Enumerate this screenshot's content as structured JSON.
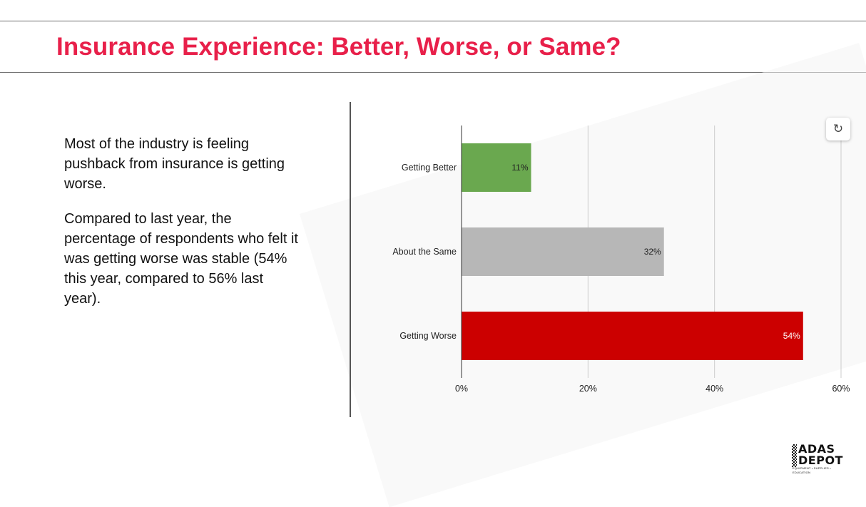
{
  "header": {
    "title": "Insurance Experience: Better, Worse, or Same?"
  },
  "body": {
    "paragraphs": [
      "Most of the industry is feeling pushback from insurance is getting worse.",
      "Compared to last year, the percentage of respondents who felt it was getting worse was stable (54% this year, compared to 56% last year)."
    ]
  },
  "controls": {
    "refresh_icon": "refresh-icon"
  },
  "logo": {
    "line1": "ADAS",
    "line2": "DEPOT",
    "tagline": "EQUIPMENT • SUPPLIES • EDUCATION"
  },
  "chart_data": {
    "type": "bar",
    "orientation": "horizontal",
    "categories": [
      "Getting Better",
      "About the Same",
      "Getting Worse"
    ],
    "values": [
      11,
      32,
      54
    ],
    "value_labels": [
      "11%",
      "32%",
      "54%"
    ],
    "colors": [
      "#6aa84f",
      "#b7b7b7",
      "#cc0000"
    ],
    "label_colors": [
      "#222222",
      "#222222",
      "#ffffff"
    ],
    "xlim": [
      0,
      60
    ],
    "x_ticks": [
      0,
      20,
      40,
      60
    ],
    "x_tick_labels": [
      "0%",
      "20%",
      "40%",
      "60%"
    ],
    "grid": true,
    "legend": "none",
    "title": "",
    "xlabel": "",
    "ylabel": ""
  }
}
